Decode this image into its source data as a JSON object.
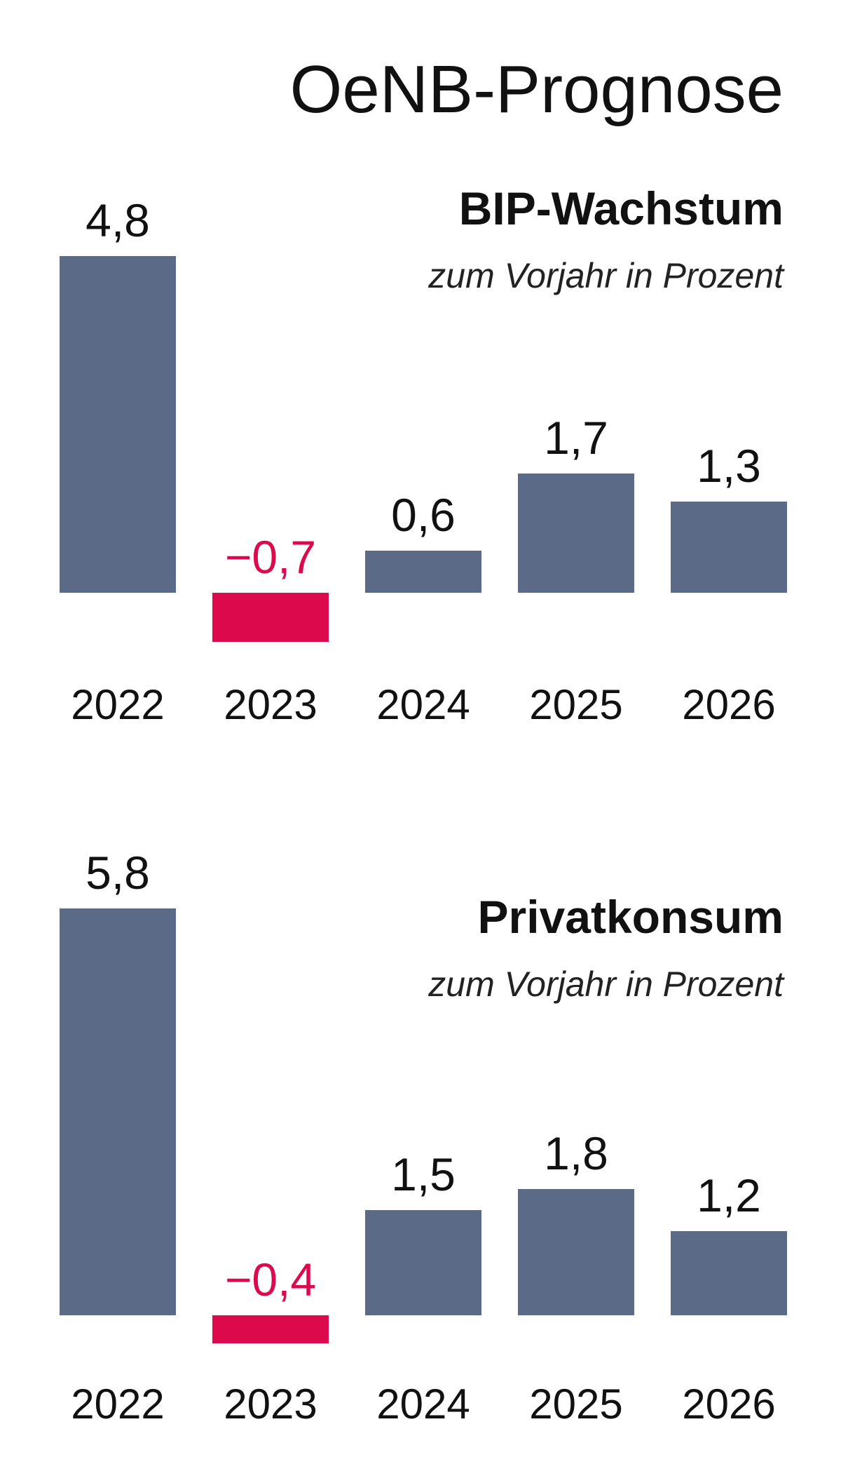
{
  "title": "OeNB-Prognose",
  "colors": {
    "positive_bar": "#5b6b87",
    "negative_bar": "#dc0a4c",
    "negative_label": "#dc0a4c",
    "positive_label": "#111111"
  },
  "chart_data": [
    {
      "type": "bar",
      "title": "BIP-Wachstum",
      "subtitle": "zum Vorjahr in Prozent",
      "categories": [
        "2022",
        "2023",
        "2024",
        "2025",
        "2026"
      ],
      "values": [
        4.8,
        -0.7,
        0.6,
        1.7,
        1.3
      ],
      "value_labels": [
        "4,8",
        "−0,7",
        "0,6",
        "1,7",
        "1,3"
      ],
      "xlabel": "",
      "ylabel": "",
      "grid": false,
      "legend": "none"
    },
    {
      "type": "bar",
      "title": "Privatkonsum",
      "subtitle": "zum Vorjahr in Prozent",
      "categories": [
        "2022",
        "2023",
        "2024",
        "2025",
        "2026"
      ],
      "values": [
        5.8,
        -0.4,
        1.5,
        1.8,
        1.2
      ],
      "value_labels": [
        "5,8",
        "−0,4",
        "1,5",
        "1,8",
        "1,2"
      ],
      "xlabel": "",
      "ylabel": "",
      "grid": false,
      "legend": "none"
    }
  ]
}
